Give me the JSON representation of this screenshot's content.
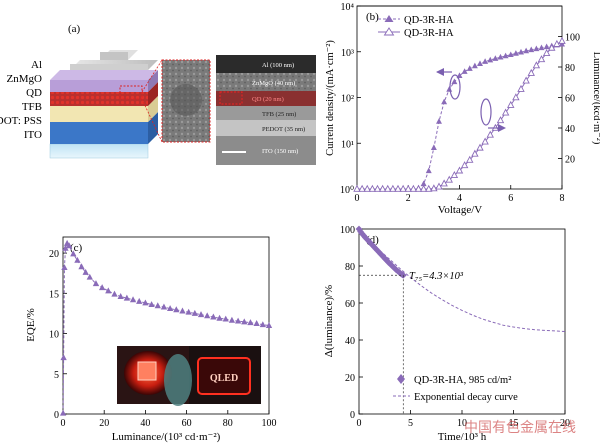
{
  "panel_a": {
    "label": "(a)",
    "layers": [
      "Al",
      "ZnMgO",
      "QD",
      "TFB",
      "PEDOT: PSS",
      "ITO"
    ],
    "tem_labels": [
      "Al (100 nm)",
      "ZnMgO (40 nm)",
      "QD (20 nm)",
      "TFB (25 nm)",
      "PEDOT (35 nm)",
      "ITO (150 nm)"
    ]
  },
  "panel_c_inset": {
    "sign_text": "QLED"
  },
  "watermark": "中国有色金属在线",
  "colors": {
    "series": "#8a6bb8",
    "series_fill": "#a58ccc",
    "axis": "#000000",
    "arrow": "#7a5fb0"
  },
  "chart_data": [
    {
      "id": "b",
      "label": "(b)",
      "type": "line",
      "xlabel": "Voltage/V",
      "ylabel": "Current density/(mA·cm⁻²)",
      "y2label": "Luminance/(kcd·m⁻²)",
      "xlim": [
        0,
        8
      ],
      "ylim": [
        1,
        10000
      ],
      "ylog": true,
      "y2lim": [
        0,
        120
      ],
      "xticks": [
        0,
        2,
        4,
        6,
        8
      ],
      "yticks": [
        1,
        10,
        100,
        1000,
        10000
      ],
      "ytick_labels": [
        "10⁰",
        "10¹",
        "10²",
        "10³",
        "10⁴"
      ],
      "y2ticks": [
        20,
        40,
        60,
        80,
        100
      ],
      "legend": "top-left",
      "series": [
        {
          "name": "QD-3R-HA",
          "axis": "left",
          "marker": "filled-triangle",
          "style": "dashed",
          "x": [
            0,
            0.2,
            0.4,
            0.6,
            0.8,
            1,
            1.2,
            1.4,
            1.6,
            1.8,
            2,
            2.2,
            2.4,
            2.6,
            2.8,
            3,
            3.2,
            3.4,
            3.6,
            3.8,
            4,
            4.2,
            4.4,
            4.6,
            4.8,
            5,
            5.2,
            5.4,
            5.6,
            5.8,
            6,
            6.2,
            6.4,
            6.6,
            6.8,
            7,
            7.2,
            7.4,
            7.6,
            7.8,
            8
          ],
          "y": [
            1,
            1,
            1,
            1,
            1,
            1,
            1,
            1,
            1,
            1,
            1,
            1,
            1.05,
            1.3,
            2.5,
            8,
            30,
            80,
            150,
            220,
            300,
            370,
            430,
            490,
            550,
            610,
            660,
            710,
            760,
            810,
            860,
            920,
            980,
            1040,
            1100,
            1160,
            1220,
            1280,
            1340,
            1400,
            1460
          ]
        },
        {
          "name": "QD-3R-HA",
          "axis": "right",
          "marker": "open-triangle",
          "style": "solid",
          "x": [
            0,
            0.2,
            0.4,
            0.6,
            0.8,
            1,
            1.2,
            1.4,
            1.6,
            1.8,
            2,
            2.2,
            2.4,
            2.6,
            2.8,
            3,
            3.2,
            3.4,
            3.6,
            3.8,
            4,
            4.2,
            4.4,
            4.6,
            4.8,
            5,
            5.2,
            5.4,
            5.6,
            5.8,
            6,
            6.2,
            6.4,
            6.6,
            6.8,
            7,
            7.2,
            7.4,
            7.6,
            7.8,
            8
          ],
          "y": [
            0,
            0,
            0,
            0,
            0,
            0,
            0,
            0,
            0,
            0,
            0,
            0,
            0,
            0,
            0,
            0.3,
            1.5,
            3.5,
            6,
            9,
            12,
            15.5,
            19,
            23,
            27,
            31,
            35.5,
            40,
            45,
            50,
            55,
            60,
            65.5,
            71,
            76,
            81,
            85,
            89,
            92.5,
            95,
            97
          ]
        }
      ]
    },
    {
      "id": "c",
      "label": "(c)",
      "type": "line",
      "xlabel": "Luminance/(10³ cd·m⁻²)",
      "ylabel": "EQE/%",
      "xlim": [
        0,
        100
      ],
      "ylim": [
        0,
        22
      ],
      "xticks": [
        0,
        20,
        40,
        60,
        80,
        100
      ],
      "yticks": [
        0,
        5,
        10,
        15,
        20
      ],
      "series": [
        {
          "marker": "filled-triangle",
          "style": "dashed",
          "x": [
            0.05,
            0.3,
            0.7,
            1.2,
            2,
            3,
            5,
            7,
            9,
            11,
            13,
            16,
            19,
            22,
            25,
            28,
            31,
            34,
            37,
            40,
            43,
            46,
            49,
            52,
            55,
            58,
            61,
            64,
            67,
            70,
            73,
            76,
            79,
            82,
            85,
            88,
            91,
            94,
            97,
            100
          ],
          "y": [
            0.1,
            7,
            18.2,
            20.6,
            21.2,
            20.9,
            19.9,
            19.1,
            18.3,
            17.6,
            17,
            16.2,
            15.7,
            15.3,
            14.9,
            14.6,
            14.4,
            14.2,
            14,
            13.8,
            13.6,
            13.45,
            13.3,
            13.1,
            12.95,
            12.8,
            12.65,
            12.5,
            12.35,
            12.2,
            12.05,
            11.9,
            11.8,
            11.65,
            11.55,
            11.45,
            11.35,
            11.25,
            11.1,
            11
          ]
        }
      ]
    },
    {
      "id": "d",
      "label": "(d)",
      "type": "line",
      "xlabel": "Time/10³ h",
      "ylabel": "Δ(luminance)/%",
      "xlim": [
        0,
        20
      ],
      "ylim": [
        0,
        100
      ],
      "xticks": [
        0,
        5,
        10,
        15,
        20
      ],
      "yticks": [
        0,
        20,
        40,
        60,
        80,
        100
      ],
      "annotation": "T₇₅=4.3×10³",
      "t75": {
        "x": 4.3,
        "y": 75
      },
      "legend": "bottom-right",
      "series": [
        {
          "name": "QD-3R-HA, 985 cd/m²",
          "marker": "filled-diamond",
          "style": "markers",
          "x": [
            0,
            0.15,
            0.3,
            0.45,
            0.6,
            0.75,
            0.9,
            1.05,
            1.2,
            1.35,
            1.5,
            1.65,
            1.8,
            1.95,
            2.1,
            2.25,
            2.4,
            2.55,
            2.7,
            2.85,
            3,
            3.15,
            3.3,
            3.45,
            3.6,
            3.75,
            3.9,
            4.05,
            4.2,
            4.3
          ],
          "y": [
            100,
            98.6,
            97.5,
            96.5,
            95.5,
            94.6,
            93.7,
            92.8,
            91.9,
            91,
            90.1,
            89.2,
            88.3,
            87.4,
            86.5,
            85.6,
            84.7,
            83.8,
            82.9,
            82,
            81.2,
            80.4,
            79.6,
            78.8,
            78,
            77.3,
            76.6,
            75.9,
            75.3,
            75
          ]
        },
        {
          "name": "Exponential decay curve",
          "style": "dashed",
          "x": [
            0,
            1,
            2,
            3,
            4,
            5,
            6,
            7,
            8,
            9,
            10,
            11,
            12,
            13,
            14,
            15,
            16,
            17,
            18,
            19,
            20
          ],
          "y": [
            100,
            94,
            88.5,
            83.5,
            78.5,
            73.8,
            69.5,
            65.5,
            62,
            58.8,
            56,
            53.5,
            51.3,
            49.6,
            48,
            47,
            46.2,
            45.6,
            45.2,
            44.9,
            44.6
          ]
        }
      ]
    }
  ]
}
